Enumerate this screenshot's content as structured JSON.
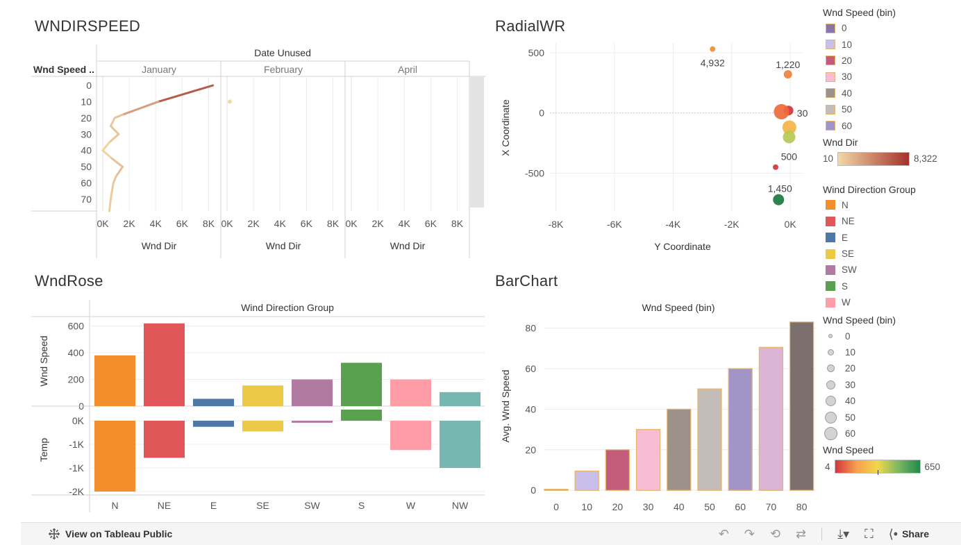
{
  "titles": {
    "wndirspeed": "WNDIRSPEED",
    "radialwr": "RadialWR",
    "wndrose": "WndRose",
    "barchart": "BarChart"
  },
  "legends": {
    "speed_bin_color": {
      "title": "Wnd Speed (bin)",
      "items": [
        {
          "label": "0",
          "color": "#8b77a6"
        },
        {
          "label": "10",
          "color": "#c8c0ea"
        },
        {
          "label": "20",
          "color": "#c25b7c"
        },
        {
          "label": "30",
          "color": "#f8bdd3"
        },
        {
          "label": "40",
          "color": "#9c918b"
        },
        {
          "label": "50",
          "color": "#c3bcb8"
        },
        {
          "label": "60",
          "color": "#a195c8"
        }
      ]
    },
    "wnd_dir": {
      "title": "Wnd Dir",
      "min": "10",
      "max": "8,322",
      "color_min": "#f2d8a6",
      "color_max": "#a3312c"
    },
    "wind_direction_group": {
      "title": "Wind Direction Group",
      "items": [
        {
          "label": "N",
          "color": "#f28e2b"
        },
        {
          "label": "NE",
          "color": "#e15759"
        },
        {
          "label": "E",
          "color": "#4e79a7"
        },
        {
          "label": "SE",
          "color": "#edc948"
        },
        {
          "label": "SW",
          "color": "#b07aa1"
        },
        {
          "label": "S",
          "color": "#59a14f"
        },
        {
          "label": "W",
          "color": "#ff9da7"
        }
      ]
    },
    "speed_bin_size": {
      "title": "Wnd Speed (bin)",
      "items": [
        {
          "label": "0",
          "size": 6
        },
        {
          "label": "10",
          "size": 9
        },
        {
          "label": "20",
          "size": 11
        },
        {
          "label": "30",
          "size": 13
        },
        {
          "label": "40",
          "size": 15
        },
        {
          "label": "50",
          "size": 17
        },
        {
          "label": "60",
          "size": 19
        }
      ]
    },
    "wnd_speed": {
      "title": "Wnd Speed",
      "min": "4",
      "max": "650"
    }
  },
  "toolbar": {
    "view_label": "View on Tableau Public",
    "share_label": "Share"
  },
  "chart_data": [
    {
      "id": "wndirspeed",
      "type": "line",
      "title": "WNDIRSPEED",
      "column_header": "Date Unused",
      "row_header": "Wnd Speed ..",
      "xlabel": "Wnd Dir",
      "x_ticks": [
        "0K",
        "2K",
        "4K",
        "6K",
        "8K"
      ],
      "xlim": [
        0,
        8500
      ],
      "y_categories": [
        "0",
        "10",
        "20",
        "30",
        "40",
        "50",
        "60",
        "70"
      ],
      "panels": [
        {
          "label": "January",
          "points": [
            [
              8322,
              0
            ],
            [
              4200,
              10
            ],
            [
              1500,
              18
            ],
            [
              900,
              20
            ],
            [
              600,
              25
            ],
            [
              1200,
              30
            ],
            [
              500,
              35
            ],
            [
              0,
              40
            ],
            [
              700,
              45
            ],
            [
              1500,
              50
            ],
            [
              1000,
              56
            ],
            [
              800,
              60
            ],
            [
              600,
              70
            ],
            [
              500,
              80
            ]
          ]
        },
        {
          "label": "February",
          "points": [
            [
              100,
              10
            ]
          ]
        },
        {
          "label": "April",
          "points": []
        }
      ]
    },
    {
      "id": "radialwr",
      "type": "scatter",
      "title": "RadialWR",
      "xlabel": "Y Coordinate",
      "ylabel": "X Coordinate",
      "x_ticks": [
        "-8K",
        "-6K",
        "-4K",
        "-2K",
        "0K"
      ],
      "y_ticks": [
        "500",
        "0",
        "-500"
      ],
      "xlim": [
        -8200,
        400
      ],
      "ylim": [
        -820,
        580
      ],
      "points": [
        {
          "x": -2650,
          "y": 530,
          "label": "4,932",
          "size": 4,
          "color": "#f28e2b"
        },
        {
          "x": -80,
          "y": 320,
          "label": "1,220",
          "size": 6,
          "color": "#f0803c"
        },
        {
          "x": -60,
          "y": 20,
          "label": "30",
          "size": 7,
          "color": "#d6333f"
        },
        {
          "x": -300,
          "y": 10,
          "label": "",
          "size": 11,
          "color": "#ee6a3a"
        },
        {
          "x": -30,
          "y": -120,
          "label": "",
          "size": 10,
          "color": "#f4b347"
        },
        {
          "x": -40,
          "y": -200,
          "label": "500",
          "size": 9,
          "color": "#b8c956"
        },
        {
          "x": -500,
          "y": -450,
          "label": "",
          "size": 4,
          "color": "#d6333f"
        },
        {
          "x": -400,
          "y": -720,
          "label": "1,450",
          "size": 8,
          "color": "#1b7a3e"
        }
      ]
    },
    {
      "id": "wndrose",
      "type": "bar",
      "title": "WndRose",
      "column_header": "Wind Direction Group",
      "categories": [
        "N",
        "NE",
        "E",
        "SE",
        "SW",
        "S",
        "W",
        "NW"
      ],
      "colors": [
        "#f28e2b",
        "#e15759",
        "#4e79a7",
        "#edc948",
        "#b07aa1",
        "#59a14f",
        "#ff9da7",
        "#76b7b2"
      ],
      "series": [
        {
          "name": "Wnd Speed",
          "values": [
            380,
            620,
            55,
            155,
            200,
            325,
            200,
            105
          ],
          "ylim": [
            0,
            650
          ],
          "ticks": [
            "600",
            "400",
            "200",
            "0"
          ]
        },
        {
          "name": "Temp",
          "values": [
            -2100,
            -1100,
            -180,
            -320,
            -60,
            330,
            -870,
            -1400
          ],
          "ylim": [
            -2150,
            400
          ],
          "ticks": [
            "0K",
            "-1K",
            "-1K",
            "-2K"
          ]
        }
      ]
    },
    {
      "id": "barchart",
      "type": "bar",
      "title": "BarChart",
      "column_header": "Wnd Speed (bin)",
      "ylabel": "Avg. Wnd Speed",
      "categories": [
        "0",
        "10",
        "20",
        "30",
        "40",
        "50",
        "60",
        "70",
        "80"
      ],
      "values": [
        0.5,
        9.5,
        20,
        30,
        40,
        50,
        60,
        70.5,
        83
      ],
      "colors": [
        "#8b77a6",
        "#c8c0ea",
        "#c25b7c",
        "#f8bdd3",
        "#9c918b",
        "#c3bcb8",
        "#a195c8",
        "#dcb4d4",
        "#7b706d"
      ],
      "ylim": [
        -3,
        86
      ],
      "y_ticks": [
        "0",
        "20",
        "40",
        "60",
        "80"
      ]
    }
  ]
}
